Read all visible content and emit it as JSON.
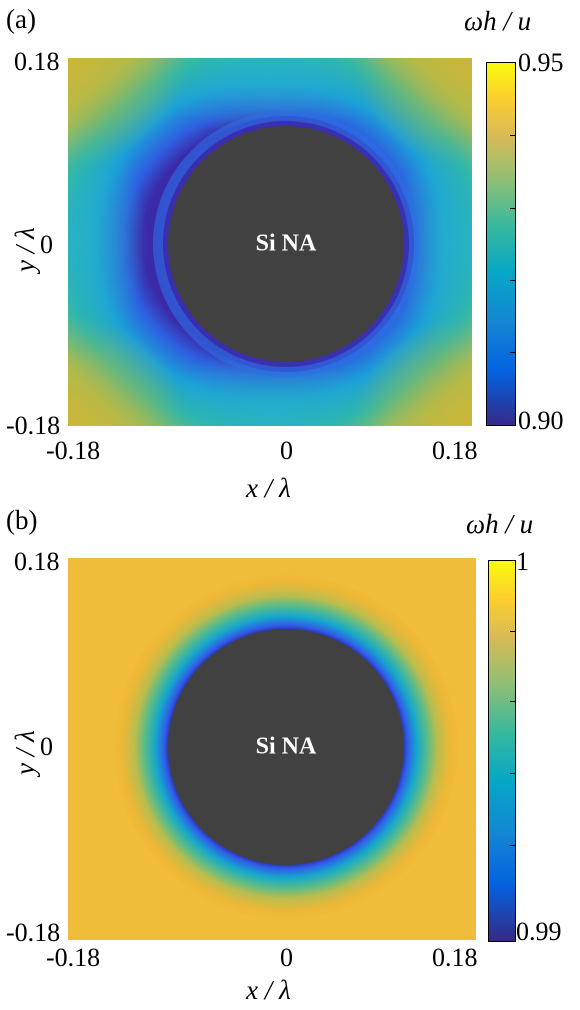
{
  "figure": {
    "panels": [
      {
        "id": "a",
        "panel_label": "(a)",
        "xlabel": "x / λ",
        "ylabel": "y / λ",
        "x_ticks": [
          "-0.18",
          "0",
          "0.18"
        ],
        "y_ticks": [
          "0.18",
          "0",
          "-0.18"
        ],
        "object_label": "Si NA",
        "colorbar_title": "ωh / u",
        "colorbar_max": "0.95",
        "colorbar_min": "0.90"
      },
      {
        "id": "b",
        "panel_label": "(b)",
        "xlabel": "x / λ",
        "ylabel": "y / λ",
        "x_ticks": [
          "-0.18",
          "0",
          "0.18"
        ],
        "y_ticks": [
          "0.18",
          "0",
          "-0.18"
        ],
        "object_label": "Si NA",
        "colorbar_title": "ωh / u",
        "colorbar_max": "1",
        "colorbar_min": "0.99"
      }
    ]
  },
  "chart_data": [
    {
      "type": "heatmap",
      "title": "(a)",
      "xlabel": "x / λ",
      "ylabel": "y / λ",
      "xlim": [
        -0.18,
        0.18
      ],
      "ylim": [
        -0.18,
        0.18
      ],
      "colorbar_label": "ωh / u",
      "colorbar_range": [
        0.9,
        0.95
      ],
      "colormap": "parula",
      "annotation": "Si NA",
      "particle_radius": 0.11,
      "colors": {
        "particle": "#414141",
        "low": "#352a87",
        "high": "#f9fb0e"
      }
    },
    {
      "type": "heatmap",
      "title": "(b)",
      "xlabel": "x / λ",
      "ylabel": "y / λ",
      "xlim": [
        -0.18,
        0.18
      ],
      "ylim": [
        -0.18,
        0.18
      ],
      "colorbar_label": "ωh / u",
      "colorbar_range": [
        0.99,
        1
      ],
      "colormap": "parula",
      "annotation": "Si NA",
      "particle_radius": 0.11,
      "colors": {
        "particle": "#414141",
        "low": "#352a87",
        "high": "#f9fb0e"
      }
    }
  ]
}
